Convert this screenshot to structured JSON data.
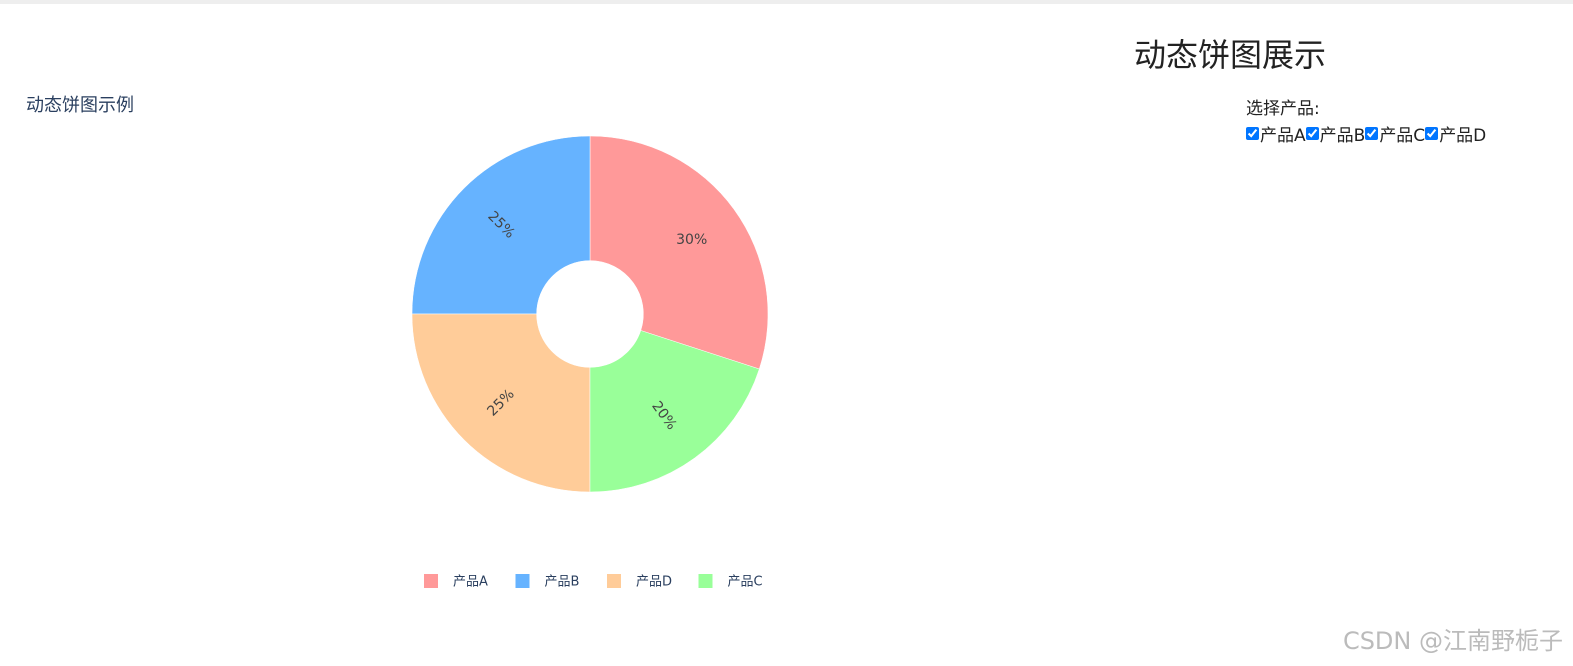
{
  "page": {
    "heading": "动态饼图展示",
    "checklist_label": "选择产品:",
    "options": [
      "产品A",
      "产品B",
      "产品C",
      "产品D"
    ],
    "watermark": "CSDN @江南野栀子"
  },
  "chart_data": {
    "type": "pie",
    "title": "动态饼图示例",
    "categories": [
      "产品A",
      "产品B",
      "产品D",
      "产品C"
    ],
    "values": [
      30,
      25,
      25,
      20
    ],
    "value_labels": [
      "30%",
      "25%",
      "25%",
      "20%"
    ],
    "colors": [
      "#ff9999",
      "#66b3ff",
      "#ffcc99",
      "#99ff99"
    ],
    "hole": 0.3
  }
}
